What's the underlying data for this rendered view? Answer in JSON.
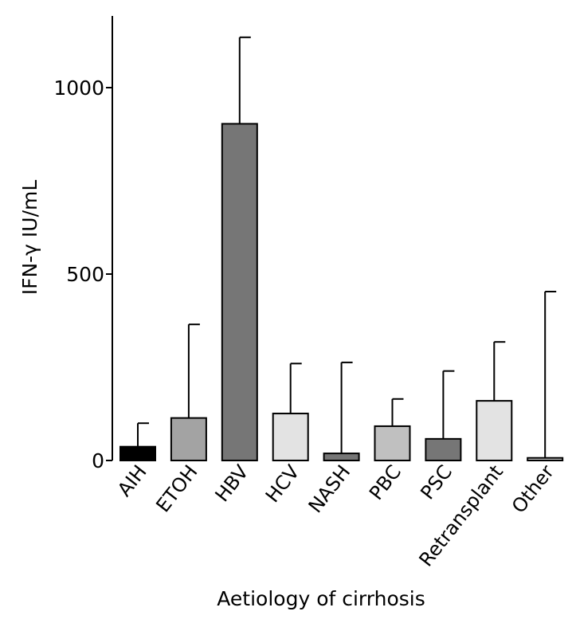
{
  "chart_data": {
    "type": "bar",
    "title": "",
    "xlabel": "Aetiology of cirrhosis",
    "ylabel": "IFN-γ IU/mL",
    "categories": [
      "AIH",
      "ETOH",
      "HBV",
      "HCV",
      "NASH",
      "PBC",
      "PSC",
      "Retransplant",
      "Other"
    ],
    "values": [
      37,
      114,
      903,
      126,
      19,
      92,
      58,
      160,
      7
    ],
    "error_upper": [
      100,
      365,
      1135,
      260,
      263,
      165,
      240,
      318,
      453
    ],
    "bar_colors": [
      "#000000",
      "#a3a3a3",
      "#767676",
      "#e3e3e3",
      "#767676",
      "#c0c0c0",
      "#767676",
      "#e3e3e3",
      "#c0c0c0"
    ],
    "yticks": [
      0,
      500,
      1000
    ],
    "ytick_labels": [
      "0",
      "500",
      "1000"
    ],
    "ylim": [
      0,
      1200
    ],
    "grid": false,
    "legend": "none"
  }
}
